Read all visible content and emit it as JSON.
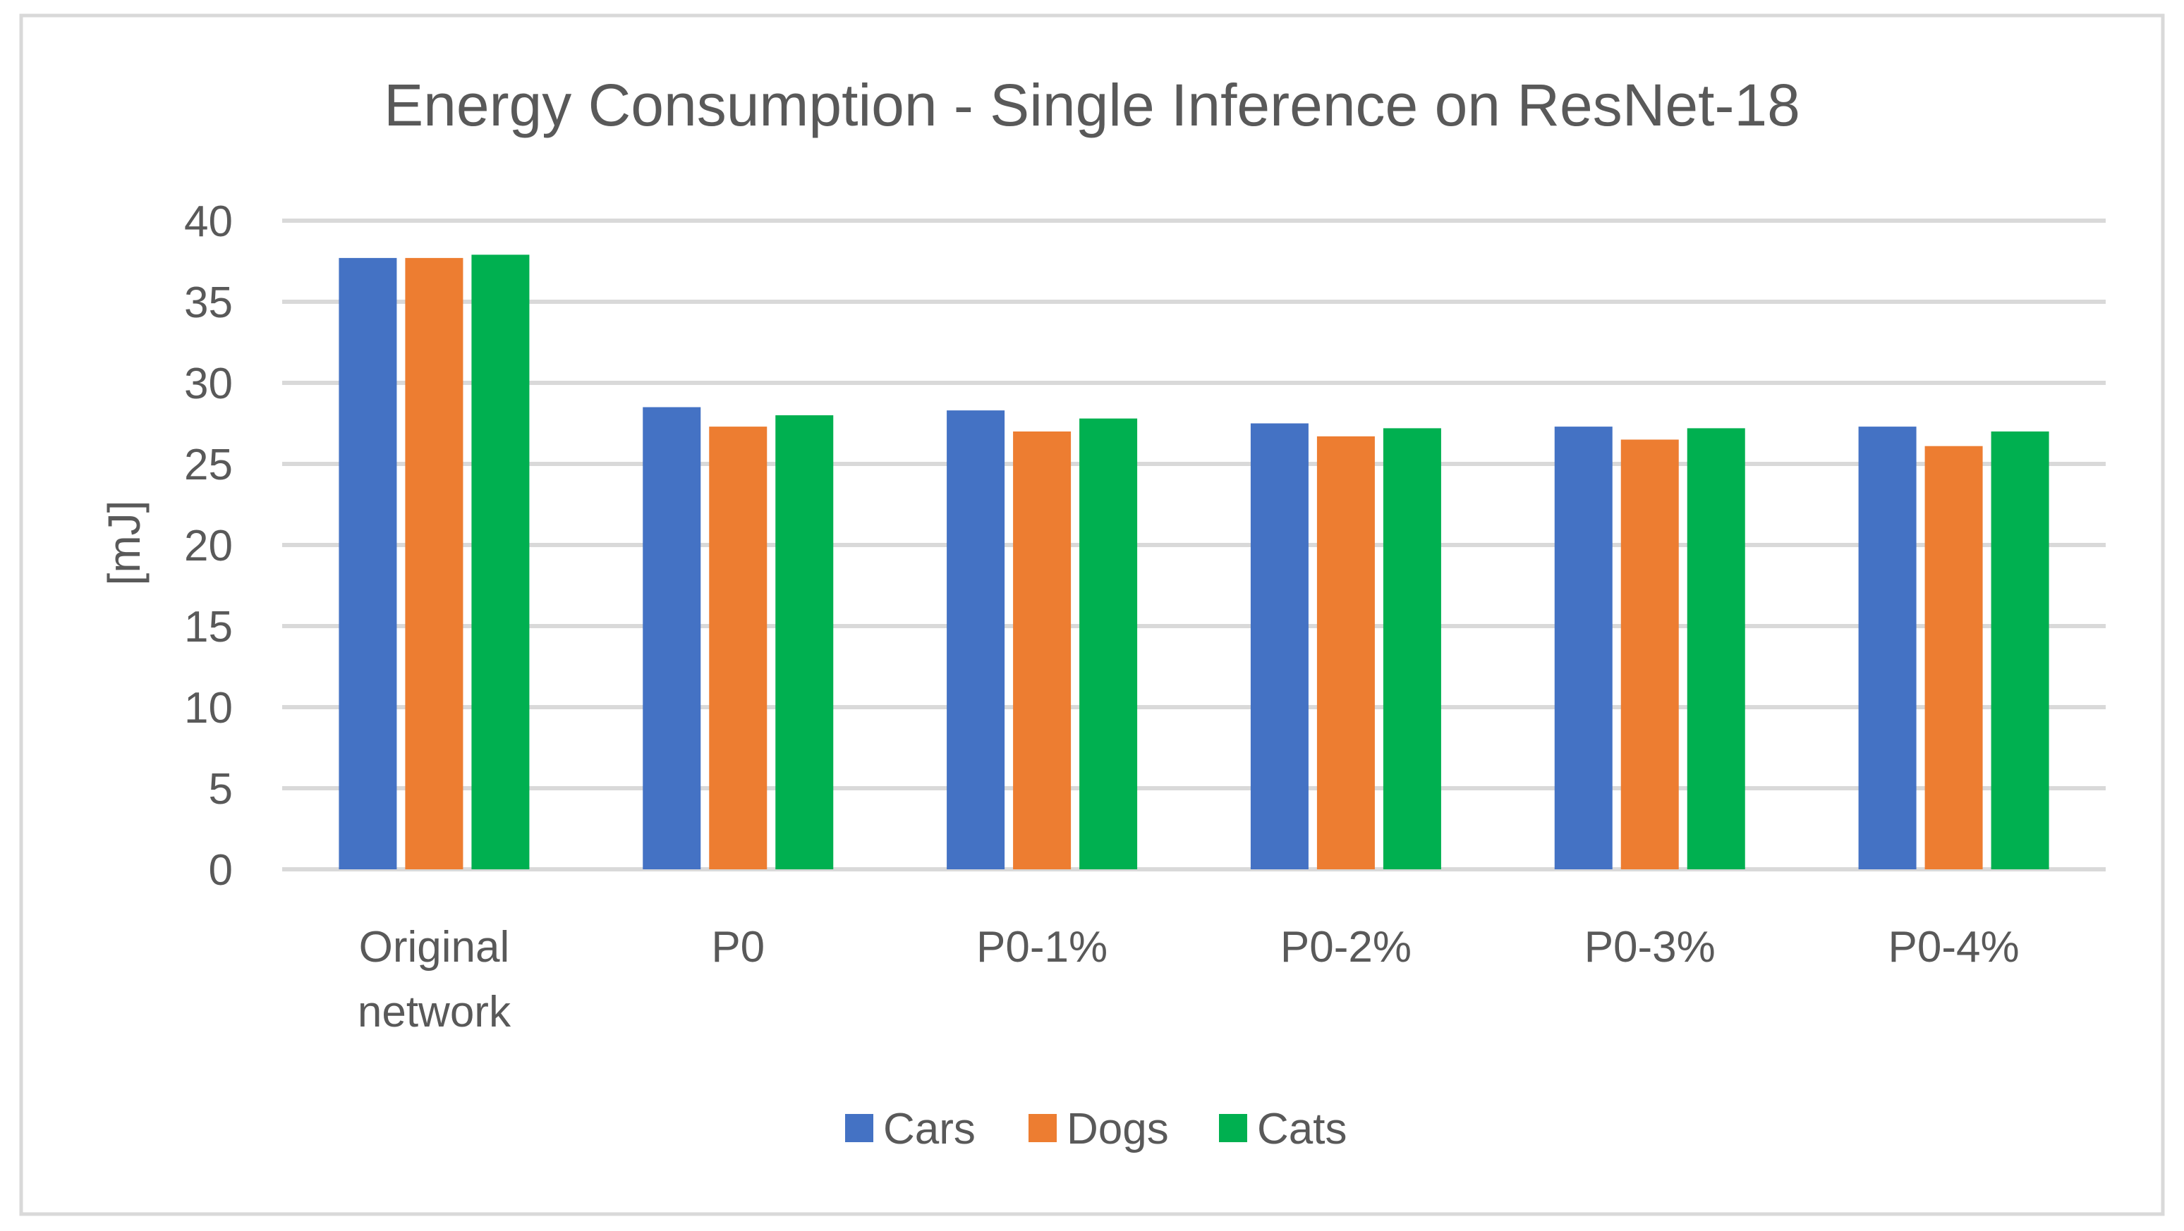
{
  "chart_data": {
    "type": "bar",
    "title": "Energy Consumption - Single Inference on ResNet-18",
    "ylabel": "[mJ]",
    "xlabel": "",
    "ylim": [
      0,
      40
    ],
    "yticks": [
      0,
      5,
      10,
      15,
      20,
      25,
      30,
      35,
      40
    ],
    "grid": true,
    "legend_position": "bottom",
    "categories": [
      [
        "Original",
        "network"
      ],
      [
        "P0"
      ],
      [
        "P0-1%"
      ],
      [
        "P0-2%"
      ],
      [
        "P0-3%"
      ],
      [
        "P0-4%"
      ]
    ],
    "series": [
      {
        "name": "Cars",
        "color": "#4472C4",
        "values": [
          37.7,
          28.5,
          28.3,
          27.5,
          27.3,
          27.3
        ]
      },
      {
        "name": "Dogs",
        "color": "#ED7D31",
        "values": [
          37.7,
          27.3,
          27.0,
          26.7,
          26.5,
          26.1
        ]
      },
      {
        "name": "Cats",
        "color": "#00B050",
        "values": [
          37.9,
          28.0,
          27.8,
          27.2,
          27.2,
          27.0
        ]
      }
    ]
  }
}
